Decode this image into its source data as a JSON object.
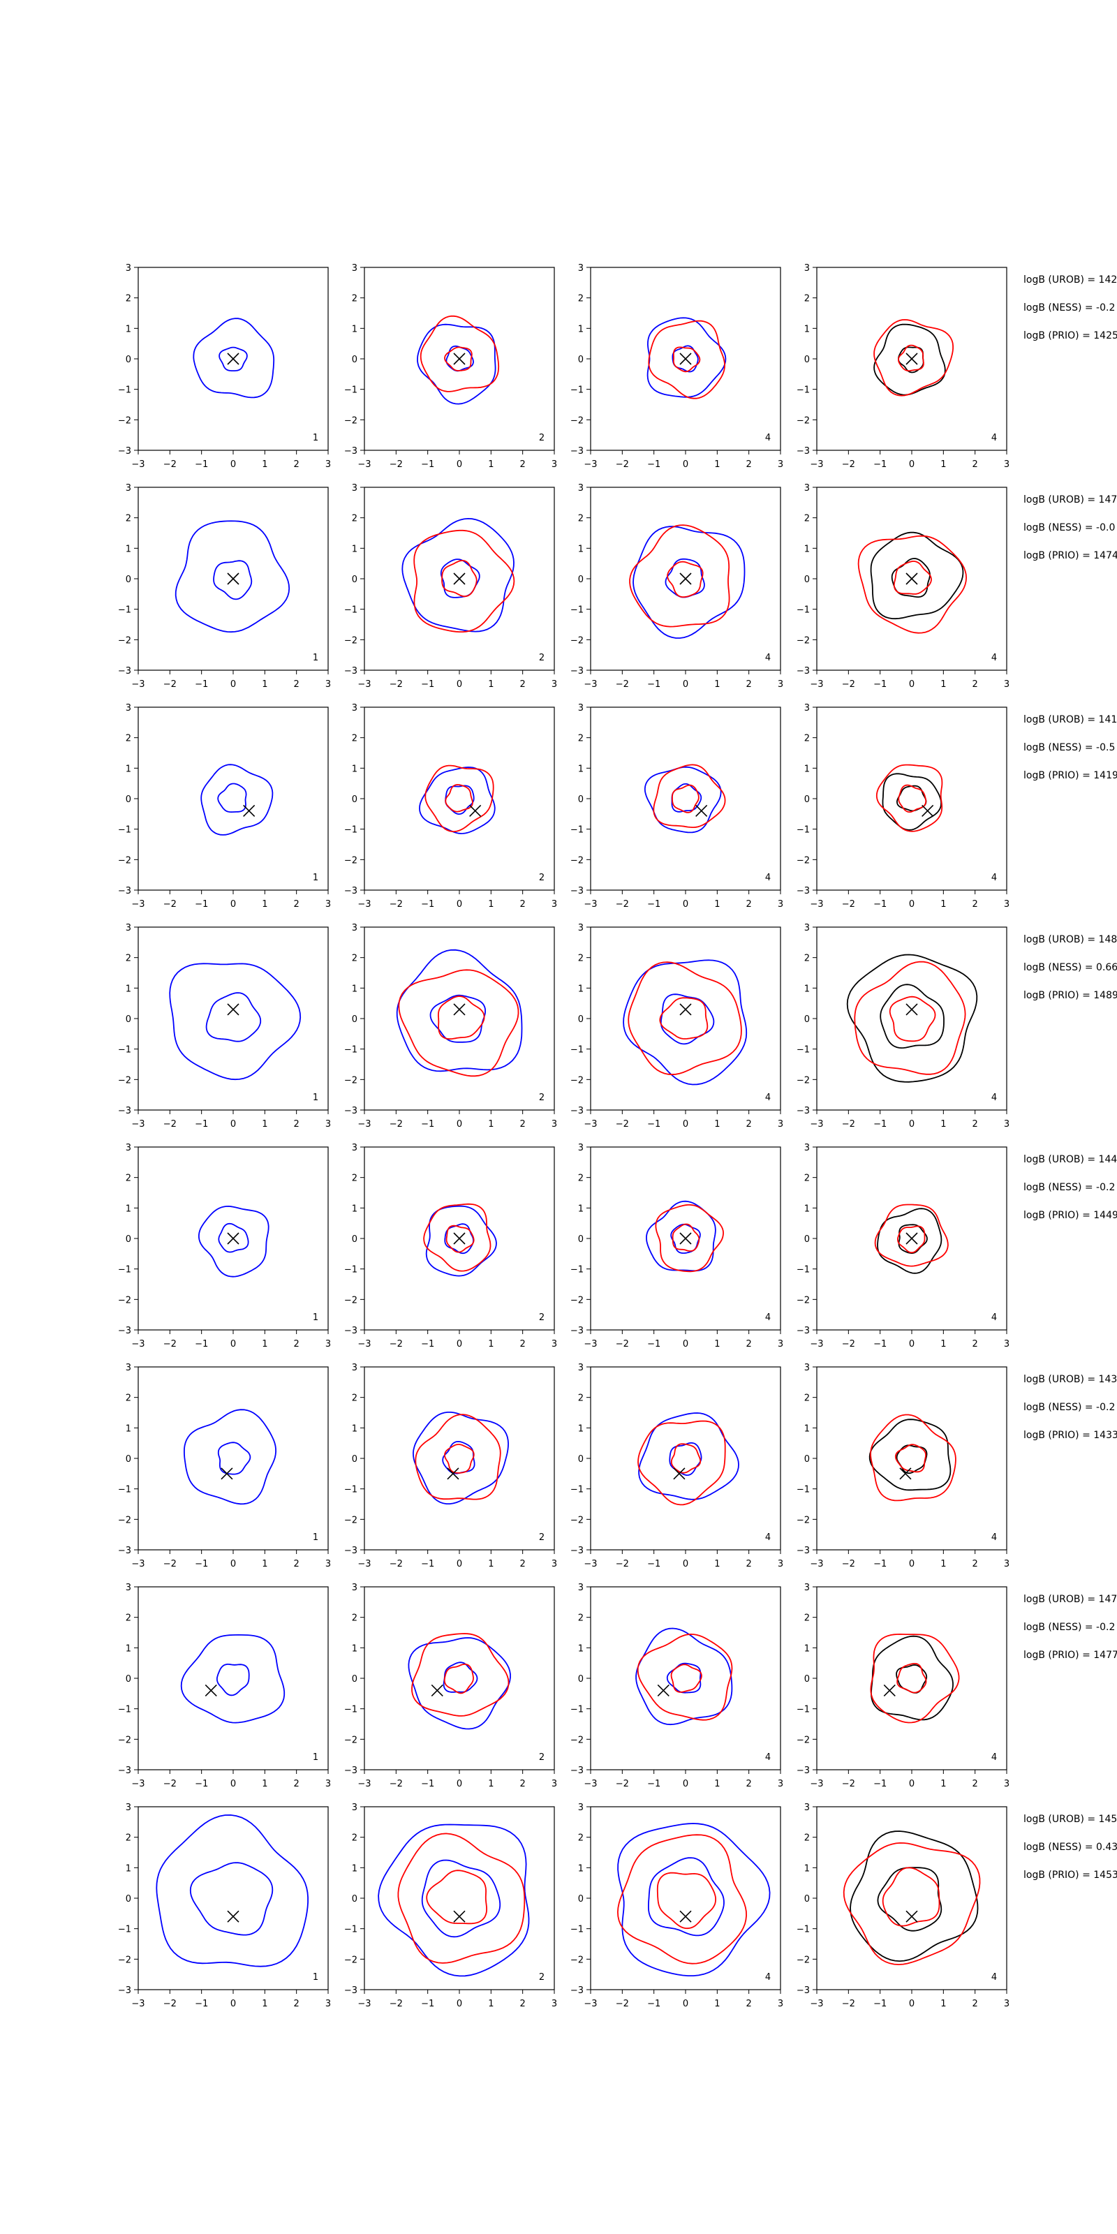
{
  "colors": {
    "uniform": "#0000ff",
    "ness": "#ff0000",
    "prior": "#000000",
    "marker": "#000000",
    "axis": "#000000"
  },
  "tick_labels": [
    "−3",
    "−2",
    "−1",
    "0",
    "1",
    "2",
    "3"
  ],
  "chart_data": {
    "type": "contour-grid",
    "xlim": [
      -3,
      3
    ],
    "ylim": [
      -3,
      3
    ],
    "ticks": [
      -3,
      -2,
      -1,
      0,
      1,
      2,
      3
    ],
    "grid": false,
    "column_labels": [
      "1",
      "2",
      "4",
      "4"
    ],
    "rows": [
      {
        "marker": [
          0.0,
          0.0
        ],
        "scales": {
          "blue": [
            0.4,
            1.25
          ],
          "red": [
            0.4,
            1.2
          ],
          "black": [
            0.4,
            1.1
          ]
        },
        "texts": [
          "logB (UROB) = 142",
          "logB (NESS) = -0.2",
          "logB (PRIO) = 1425"
        ]
      },
      {
        "marker": [
          0.0,
          0.0
        ],
        "scales": {
          "blue": [
            0.6,
            1.75
          ],
          "red": [
            0.55,
            1.6
          ],
          "black": [
            0.6,
            1.4
          ]
        },
        "texts": [
          "logB (UROB) = 147",
          "logB (NESS) = -0.0",
          "logB (PRIO) = 1474"
        ]
      },
      {
        "marker": [
          0.5,
          -0.4
        ],
        "scales": {
          "blue": [
            0.45,
            1.1
          ],
          "red": [
            0.42,
            1.05
          ],
          "black": [
            0.42,
            0.9
          ]
        },
        "texts": [
          "logB (UROB) = 141",
          "logB (NESS) = -0.5",
          "logB (PRIO) = 1419"
        ]
      },
      {
        "marker": [
          0.0,
          0.3
        ],
        "scales": {
          "blue": [
            0.8,
            1.95
          ],
          "red": [
            0.7,
            1.75
          ],
          "black": [
            1.0,
            2.0
          ]
        },
        "texts": [
          "logB (UROB) = 148",
          "logB (NESS) = 0.66",
          "logB (PRIO) = 1489"
        ]
      },
      {
        "marker": [
          0.0,
          0.0
        ],
        "scales": {
          "blue": [
            0.45,
            1.1
          ],
          "red": [
            0.42,
            1.05
          ],
          "black": [
            0.45,
            1.0
          ]
        },
        "texts": [
          "logB (UROB) = 144",
          "logB (NESS) = -0.2",
          "logB (PRIO) = 1449"
        ]
      },
      {
        "marker": [
          -0.2,
          -0.5
        ],
        "scales": {
          "blue": [
            0.5,
            1.45
          ],
          "red": [
            0.45,
            1.35
          ],
          "black": [
            0.45,
            1.2
          ]
        },
        "texts": [
          "logB (UROB) = 143",
          "logB (NESS) = -0.2",
          "logB (PRIO) = 1433"
        ]
      },
      {
        "marker": [
          -0.7,
          -0.4
        ],
        "scales": {
          "blue": [
            0.5,
            1.5
          ],
          "red": [
            0.45,
            1.4
          ],
          "black": [
            0.45,
            1.3
          ]
        },
        "texts": [
          "logB (UROB) = 147",
          "logB (NESS) = -0.2",
          "logB (PRIO) = 1477"
        ]
      },
      {
        "marker": [
          0.0,
          -0.6
        ],
        "scales": {
          "blue": [
            1.2,
            2.4
          ],
          "red": [
            0.9,
            2.0
          ],
          "black": [
            1.0,
            2.0
          ]
        },
        "texts": [
          "logB (UROB) = 145",
          "logB (NESS) = 0.43",
          "logB (PRIO) = 1453"
        ]
      }
    ]
  }
}
